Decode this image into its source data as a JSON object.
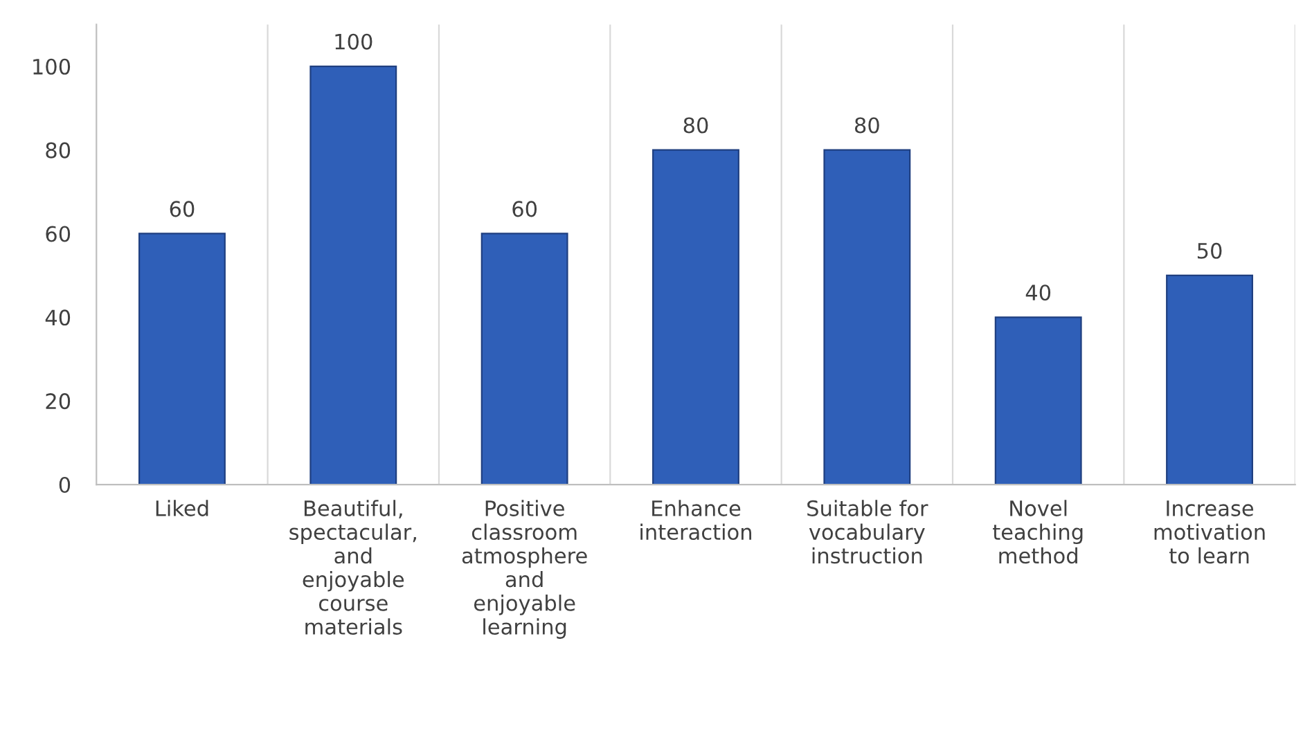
{
  "chart_data": {
    "type": "bar",
    "categories": [
      "Liked",
      "Beautiful,\nspectacular,\nand\nenjoyable\ncourse\nmaterials",
      "Positive\nclassroom\natmosphere\nand\nenjoyable\nlearning",
      "Enhance\ninteraction",
      "Suitable for\nvocabulary\ninstruction",
      "Novel\nteaching\nmethod",
      "Increase\nmotivation\nto learn"
    ],
    "values": [
      60,
      100,
      60,
      80,
      80,
      40,
      50
    ],
    "color": "#2f5fb8",
    "ylim": [
      0,
      110
    ],
    "yticks": [
      0,
      20,
      40,
      60,
      80,
      100
    ],
    "grid": "x",
    "data_labels": true
  }
}
